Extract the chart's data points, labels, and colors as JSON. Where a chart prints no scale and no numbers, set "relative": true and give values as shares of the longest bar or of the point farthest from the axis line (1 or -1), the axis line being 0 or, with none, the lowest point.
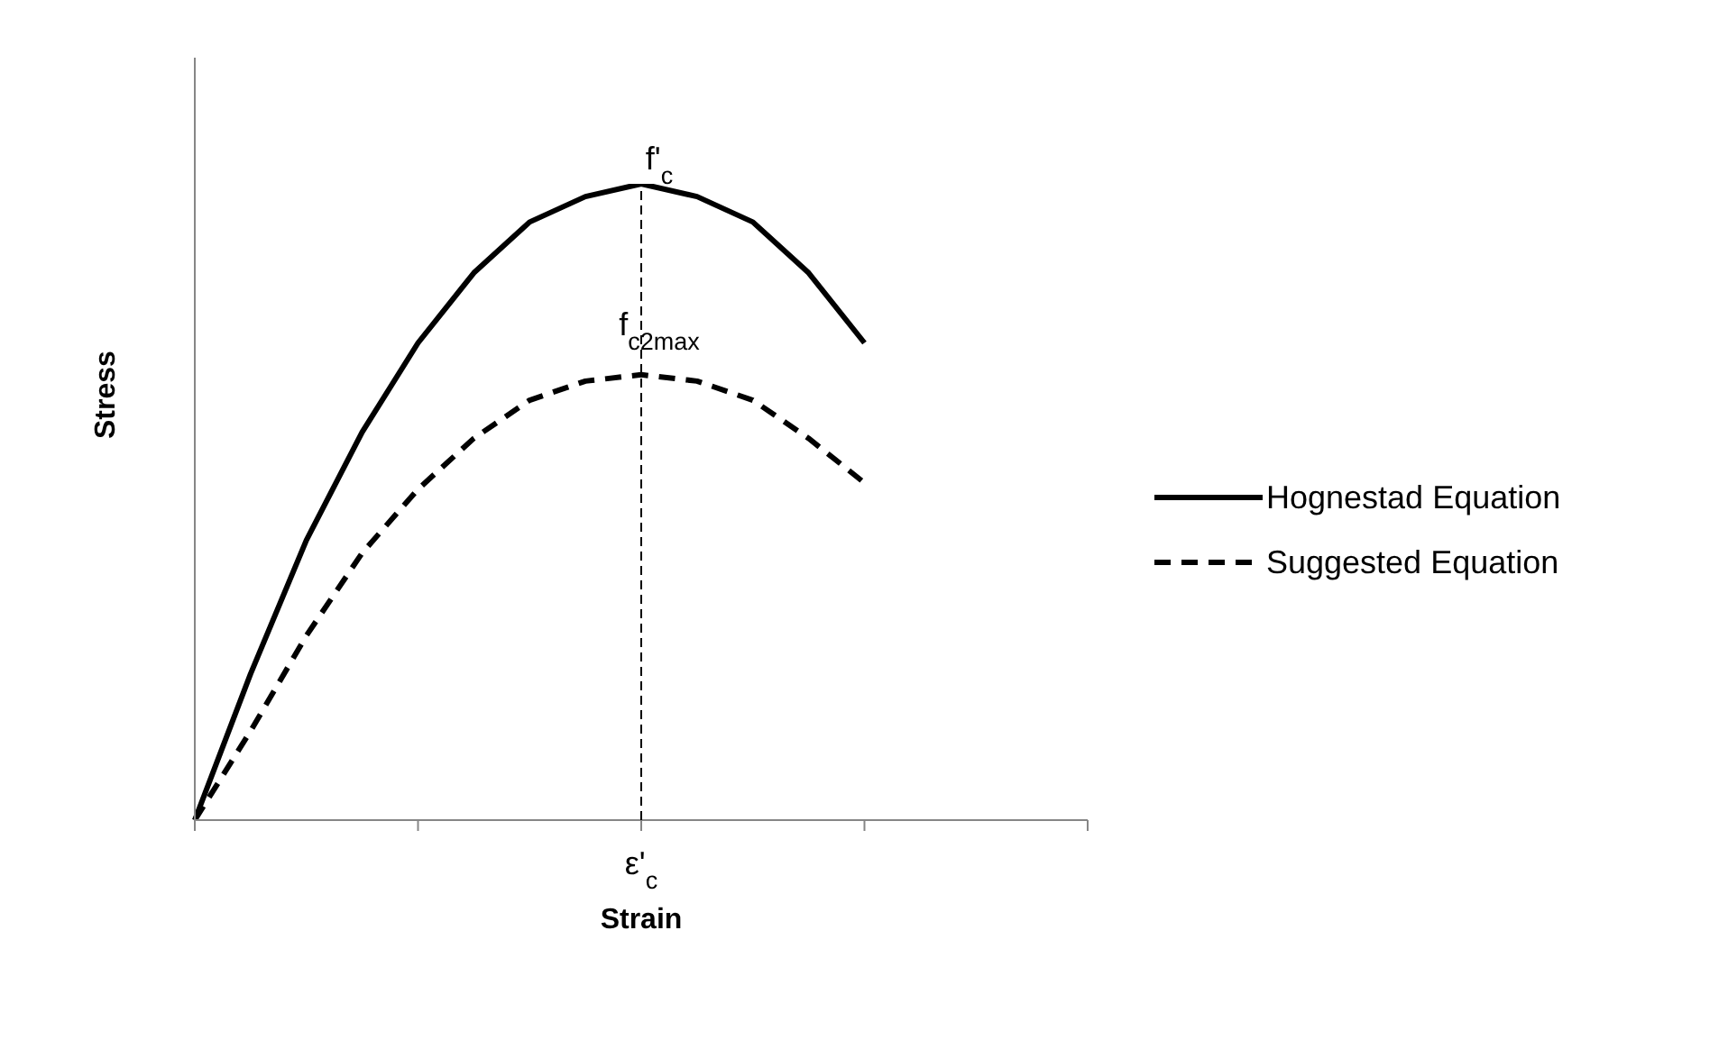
{
  "chart_data": {
    "type": "line",
    "relative": true,
    "xlabel": "Strain",
    "ylabel": "Stress",
    "categories": [
      null,
      null,
      null,
      null,
      null,
      null,
      null,
      null,
      null,
      null,
      null,
      null,
      null,
      null,
      null,
      null,
      null
    ],
    "series": [
      {
        "name": "Hognestad Equation",
        "color": "#000000",
        "line_style": "solid",
        "values": [
          0,
          0.23,
          0.44,
          0.61,
          0.75,
          0.86,
          0.94,
          0.98,
          1,
          0.98,
          0.94,
          0.86,
          0.75,
          null,
          null,
          null,
          null
        ]
      },
      {
        "name": "Suggested Equation",
        "color": "#000000",
        "line_style": "dashed",
        "values": [
          0,
          0.14,
          0.29,
          0.42,
          0.52,
          0.6,
          0.66,
          0.69,
          0.7,
          0.69,
          0.66,
          0.6,
          0.53,
          null,
          null,
          null,
          null
        ]
      }
    ],
    "annotations": [
      "f'$_{c}$",
      "f$_{c2max}$"
    ],
    "ref_lines": [
      {
        "axis": "x",
        "label": "ε'$_{c}$",
        "line_style": "dashed",
        "color": "#000000"
      }
    ],
    "legend": "right",
    "marker": "none",
    "grid": false
  }
}
